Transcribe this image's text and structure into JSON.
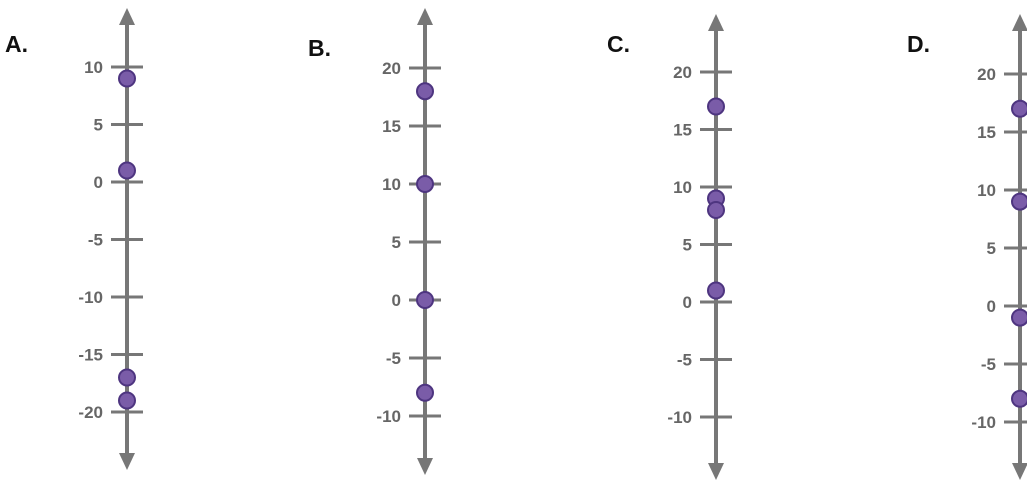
{
  "colors": {
    "axis": "#777777",
    "tick_label": "#666666",
    "point_fill": "#7a5ca8",
    "point_stroke": "#4e3580"
  },
  "chart_data": [
    {
      "type": "scatter",
      "option": "A.",
      "ticks": [
        10,
        5,
        0,
        -5,
        -10,
        -15,
        -20
      ],
      "points": [
        9,
        1,
        -17,
        -19
      ]
    },
    {
      "type": "scatter",
      "option": "B.",
      "ticks": [
        20,
        15,
        10,
        5,
        0,
        -5,
        -10
      ],
      "points": [
        18,
        10,
        0,
        -8
      ]
    },
    {
      "type": "scatter",
      "option": "C.",
      "ticks": [
        20,
        15,
        10,
        5,
        0,
        -5,
        -10
      ],
      "points": [
        17,
        9,
        8,
        1
      ]
    },
    {
      "type": "scatter",
      "option": "D.",
      "ticks": [
        20,
        15,
        10,
        5,
        0,
        -5,
        -10
      ],
      "points": [
        17,
        9,
        -1,
        -8
      ]
    }
  ]
}
